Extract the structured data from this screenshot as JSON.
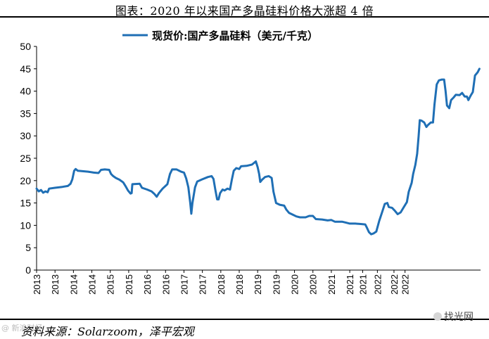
{
  "figure": {
    "title": "图表：2020 年以来国产多晶硅料价格大涨超 4 倍",
    "source": "资料来源：Solarzoom，泽平宏观",
    "watermark_left": "@ 新浪财经",
    "watermark_right": "找光网"
  },
  "colors": {
    "line": "#1f6fb5",
    "axis": "#000000"
  },
  "chart_data": {
    "type": "line",
    "legend": {
      "position": "top-center"
    },
    "series": [
      {
        "name": "现货价:国产多晶硅料（美元/千克）",
        "points": [
          [
            2013.0,
            18.2
          ],
          [
            2013.06,
            17.6
          ],
          [
            2013.12,
            17.9
          ],
          [
            2013.18,
            17.3
          ],
          [
            2013.24,
            17.6
          ],
          [
            2013.3,
            17.4
          ],
          [
            2013.34,
            18.2
          ],
          [
            2013.5,
            18.4
          ],
          [
            2013.7,
            18.6
          ],
          [
            2013.85,
            18.8
          ],
          [
            2013.92,
            19.3
          ],
          [
            2013.97,
            20.3
          ],
          [
            2014.02,
            22.2
          ],
          [
            2014.06,
            22.6
          ],
          [
            2014.12,
            22.2
          ],
          [
            2014.4,
            22.0
          ],
          [
            2014.55,
            21.8
          ],
          [
            2014.68,
            21.7
          ],
          [
            2014.75,
            22.4
          ],
          [
            2014.85,
            22.5
          ],
          [
            2014.97,
            22.4
          ],
          [
            2015.02,
            21.5
          ],
          [
            2015.08,
            21.0
          ],
          [
            2015.15,
            20.6
          ],
          [
            2015.25,
            20.2
          ],
          [
            2015.35,
            19.6
          ],
          [
            2015.42,
            18.7
          ],
          [
            2015.48,
            17.8
          ],
          [
            2015.55,
            17.1
          ],
          [
            2015.58,
            17.2
          ],
          [
            2015.6,
            19.2
          ],
          [
            2015.8,
            19.3
          ],
          [
            2015.86,
            18.4
          ],
          [
            2016.0,
            18.0
          ],
          [
            2016.12,
            17.6
          ],
          [
            2016.2,
            17.0
          ],
          [
            2016.26,
            16.4
          ],
          [
            2016.32,
            17.2
          ],
          [
            2016.42,
            18.2
          ],
          [
            2016.55,
            19.2
          ],
          [
            2016.62,
            21.5
          ],
          [
            2016.68,
            22.5
          ],
          [
            2016.8,
            22.5
          ],
          [
            2016.92,
            22.0
          ],
          [
            2017.0,
            21.8
          ],
          [
            2017.06,
            20.5
          ],
          [
            2017.12,
            18.5
          ],
          [
            2017.17,
            15.0
          ],
          [
            2017.2,
            12.6
          ],
          [
            2017.23,
            15.0
          ],
          [
            2017.3,
            18.5
          ],
          [
            2017.36,
            19.8
          ],
          [
            2017.5,
            20.3
          ],
          [
            2017.65,
            20.8
          ],
          [
            2017.75,
            21.0
          ],
          [
            2017.8,
            20.4
          ],
          [
            2017.85,
            18.0
          ],
          [
            2017.9,
            15.8
          ],
          [
            2017.94,
            15.8
          ],
          [
            2017.98,
            17.2
          ],
          [
            2018.05,
            18.0
          ],
          [
            2018.1,
            17.8
          ],
          [
            2018.18,
            18.2
          ],
          [
            2018.25,
            18.0
          ],
          [
            2018.3,
            20.2
          ],
          [
            2018.35,
            22.2
          ],
          [
            2018.42,
            22.8
          ],
          [
            2018.5,
            22.6
          ],
          [
            2018.55,
            23.2
          ],
          [
            2018.7,
            23.3
          ],
          [
            2018.85,
            23.6
          ],
          [
            2018.95,
            24.3
          ],
          [
            2019.0,
            23.0
          ],
          [
            2019.04,
            21.5
          ],
          [
            2019.07,
            19.7
          ],
          [
            2019.12,
            20.2
          ],
          [
            2019.2,
            20.8
          ],
          [
            2019.3,
            21.0
          ],
          [
            2019.38,
            20.6
          ],
          [
            2019.43,
            17.5
          ],
          [
            2019.5,
            15.0
          ],
          [
            2019.6,
            14.6
          ],
          [
            2019.72,
            14.4
          ],
          [
            2019.78,
            13.5
          ],
          [
            2019.85,
            12.8
          ],
          [
            2019.95,
            12.4
          ],
          [
            2020.05,
            12.0
          ],
          [
            2020.15,
            11.8
          ],
          [
            2020.3,
            11.8
          ],
          [
            2020.4,
            12.1
          ],
          [
            2020.5,
            12.1
          ],
          [
            2020.58,
            11.4
          ],
          [
            2020.75,
            11.3
          ],
          [
            2020.9,
            11.1
          ],
          [
            2021.0,
            11.2
          ],
          [
            2021.1,
            10.8
          ],
          [
            2021.3,
            10.8
          ],
          [
            2021.4,
            10.6
          ],
          [
            2021.5,
            10.4
          ],
          [
            2021.65,
            10.4
          ],
          [
            2021.8,
            10.3
          ],
          [
            2021.92,
            10.2
          ],
          [
            2021.97,
            9.4
          ],
          [
            2022.02,
            8.5
          ],
          [
            2022.08,
            8.0
          ],
          [
            2022.15,
            8.2
          ],
          [
            2022.22,
            8.6
          ],
          [
            2022.3,
            11.0
          ],
          [
            2022.38,
            13.0
          ],
          [
            2022.45,
            14.8
          ],
          [
            2022.52,
            15.0
          ],
          [
            2022.56,
            14.1
          ],
          [
            2022.65,
            13.9
          ],
          [
            2022.72,
            13.3
          ],
          [
            2022.8,
            12.5
          ],
          [
            2022.88,
            12.9
          ],
          [
            2022.96,
            14.0
          ],
          [
            2023.05,
            15.2
          ],
          [
            2023.1,
            17.5
          ],
          [
            2023.18,
            19.5
          ],
          [
            2023.22,
            21.5
          ],
          [
            2023.28,
            23.5
          ],
          [
            2023.33,
            26.0
          ],
          [
            2023.37,
            30.0
          ],
          [
            2023.4,
            33.5
          ],
          [
            2023.45,
            33.4
          ],
          [
            2023.52,
            33.0
          ],
          [
            2023.58,
            32.0
          ],
          [
            2023.62,
            32.4
          ],
          [
            2023.7,
            33.0
          ],
          [
            2023.76,
            33.0
          ],
          [
            2023.8,
            37.0
          ],
          [
            2023.86,
            41.5
          ],
          [
            2023.92,
            42.4
          ],
          [
            2024.0,
            42.6
          ],
          [
            2024.06,
            42.6
          ],
          [
            2024.1,
            40.0
          ],
          [
            2024.14,
            36.8
          ],
          [
            2024.2,
            36.2
          ],
          [
            2024.25,
            38.0
          ],
          [
            2024.32,
            38.6
          ],
          [
            2024.38,
            39.2
          ],
          [
            2024.48,
            39.1
          ],
          [
            2024.55,
            39.6
          ],
          [
            2024.62,
            38.8
          ],
          [
            2024.68,
            38.8
          ],
          [
            2024.72,
            38.0
          ],
          [
            2024.78,
            39.0
          ],
          [
            2024.84,
            39.8
          ],
          [
            2024.9,
            43.5
          ],
          [
            2024.97,
            44.2
          ],
          [
            2025.02,
            45.0
          ]
        ]
      }
    ],
    "y_axis": {
      "min": 0,
      "max": 50,
      "ticks": [
        0,
        5,
        10,
        15,
        20,
        25,
        30,
        35,
        40,
        45,
        50
      ]
    },
    "x_axis": {
      "min": 2013,
      "max": 2025.05,
      "tick_labels": [
        "2013",
        "2013",
        "2014",
        "2014",
        "2015",
        "2015",
        "2016",
        "2016",
        "2017",
        "2017",
        "2018",
        "2018",
        "2019",
        "2019",
        "2020",
        "2020",
        "2021",
        "2021",
        "2021",
        "2022",
        "2022",
        "2022"
      ],
      "tick_positions": [
        2013.0,
        2013.5,
        2014.0,
        2014.5,
        2015.0,
        2015.5,
        2016.0,
        2016.5,
        2017.0,
        2017.5,
        2018.0,
        2018.5,
        2019.0,
        2019.5,
        2020.0,
        2020.5,
        2021.0,
        2021.5,
        2021.85,
        2022.25,
        2022.7,
        2023.0
      ]
    },
    "grid": false
  }
}
